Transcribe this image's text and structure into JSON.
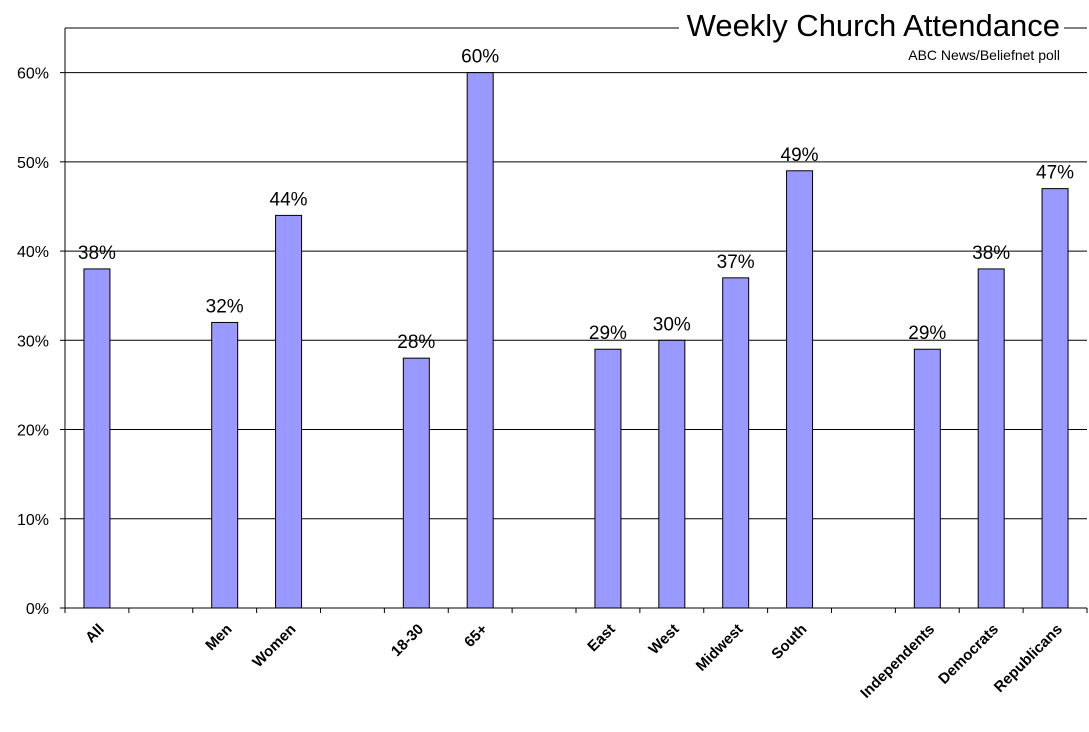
{
  "chart_data": {
    "type": "bar",
    "title": "Weekly Church Attendance",
    "subtitle": "ABC News/Beliefnet poll",
    "categories": [
      "All",
      "",
      "Men",
      "Women",
      "",
      "18-30",
      "65+",
      "",
      "East",
      "West",
      "Midwest",
      "South",
      "",
      "Independents",
      "Democrats",
      "Republicans"
    ],
    "values": [
      38,
      null,
      32,
      44,
      null,
      28,
      60,
      null,
      29,
      30,
      37,
      49,
      null,
      29,
      38,
      47
    ],
    "data_labels": [
      "38%",
      "",
      "32%",
      "44%",
      "",
      "28%",
      "60%",
      "",
      "29%",
      "30%",
      "37%",
      "49%",
      "",
      "29%",
      "38%",
      "47%"
    ],
    "y_ticks": [
      "0%",
      "10%",
      "20%",
      "30%",
      "40%",
      "50%",
      "60%"
    ],
    "ylim": [
      0,
      65
    ],
    "xlabel": "",
    "ylabel": "",
    "grid": true,
    "legend": false,
    "bar_color": "#9999ff",
    "bar_edge_color": "#000000"
  }
}
